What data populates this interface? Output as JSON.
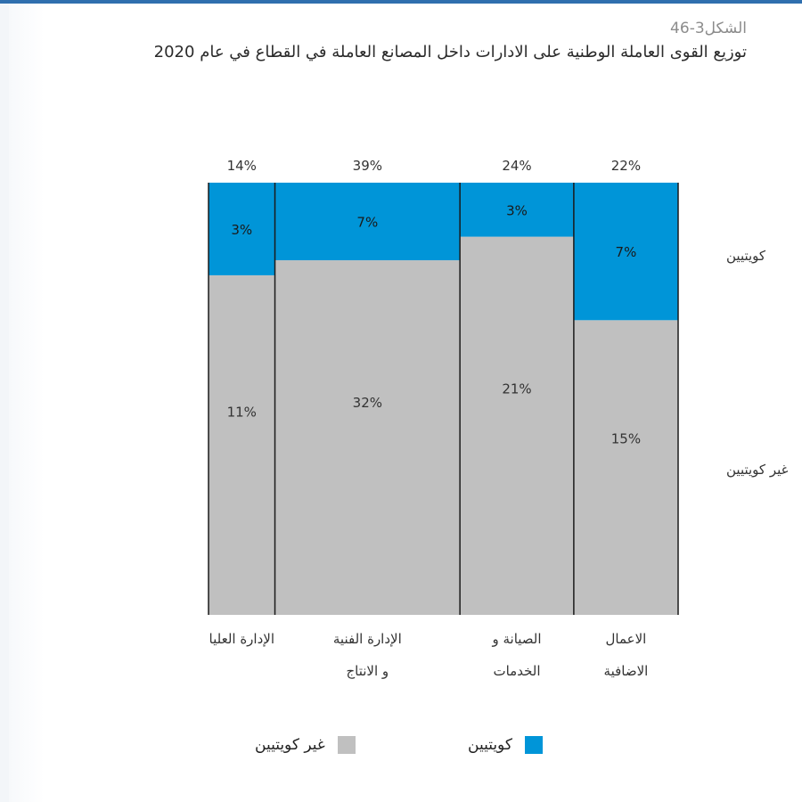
{
  "figure": {
    "label": "الشكل3-46",
    "title": "توزيع القوى العاملة الوطنية على الادارات داخل المصانع العاملة في القطاع في عام 2020"
  },
  "colors": {
    "kuwaiti": "#0095d8",
    "non_kuwaiti": "#c0c0c0",
    "divider": "#1a1a1a"
  },
  "chart_data": {
    "type": "bar",
    "stacked": true,
    "variable_width": true,
    "categories": [
      [
        "الإدارة العليا"
      ],
      [
        "الإدارة الفنية",
        "و  الانتاج"
      ],
      [
        "الصيانة و",
        "الخدمات"
      ],
      [
        "الاعمال",
        "الاضافية"
      ]
    ],
    "totals": [
      "14%",
      "39%",
      "24%",
      "22%"
    ],
    "total_values": [
      14,
      39,
      24,
      22
    ],
    "series": [
      {
        "name": "كويتيين",
        "values": [
          3,
          7,
          3,
          7
        ],
        "labels": [
          "3%",
          "7%",
          "3%",
          "7%"
        ]
      },
      {
        "name": "غير كويتيين",
        "values": [
          11,
          32,
          21,
          15
        ],
        "labels": [
          "11%",
          "32%",
          "21%",
          "15%"
        ]
      }
    ],
    "side_labels": {
      "kuwaiti": "كويتيين",
      "non_kuwaiti": "غير كويتيين"
    },
    "ylim": [
      0,
      100
    ],
    "legend_position": "bottom"
  },
  "legend": {
    "kuwaiti": "كويتيين",
    "non_kuwaiti": "غير كويتيين"
  }
}
